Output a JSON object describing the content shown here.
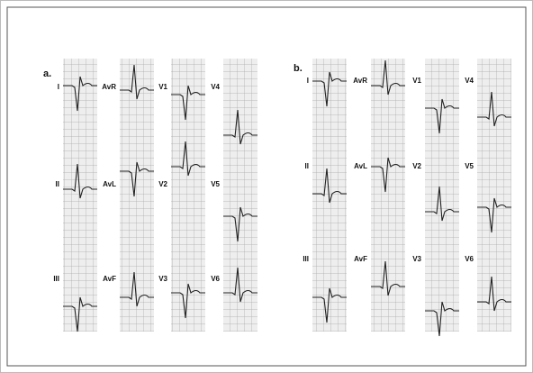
{
  "panels": [
    {
      "label": "a.",
      "leads": [
        [
          "I",
          "AvR",
          "V1",
          "V4"
        ],
        [
          "II",
          "AvL",
          "V2",
          "V5"
        ],
        [
          "III",
          "AvF",
          "V3",
          "V6"
        ]
      ]
    },
    {
      "label": "b.",
      "leads": [
        [
          "I",
          "AvR",
          "V1",
          "V4"
        ],
        [
          "II",
          "AvL",
          "V2",
          "V5"
        ],
        [
          "III",
          "AvF",
          "V3",
          "V6"
        ]
      ]
    }
  ]
}
